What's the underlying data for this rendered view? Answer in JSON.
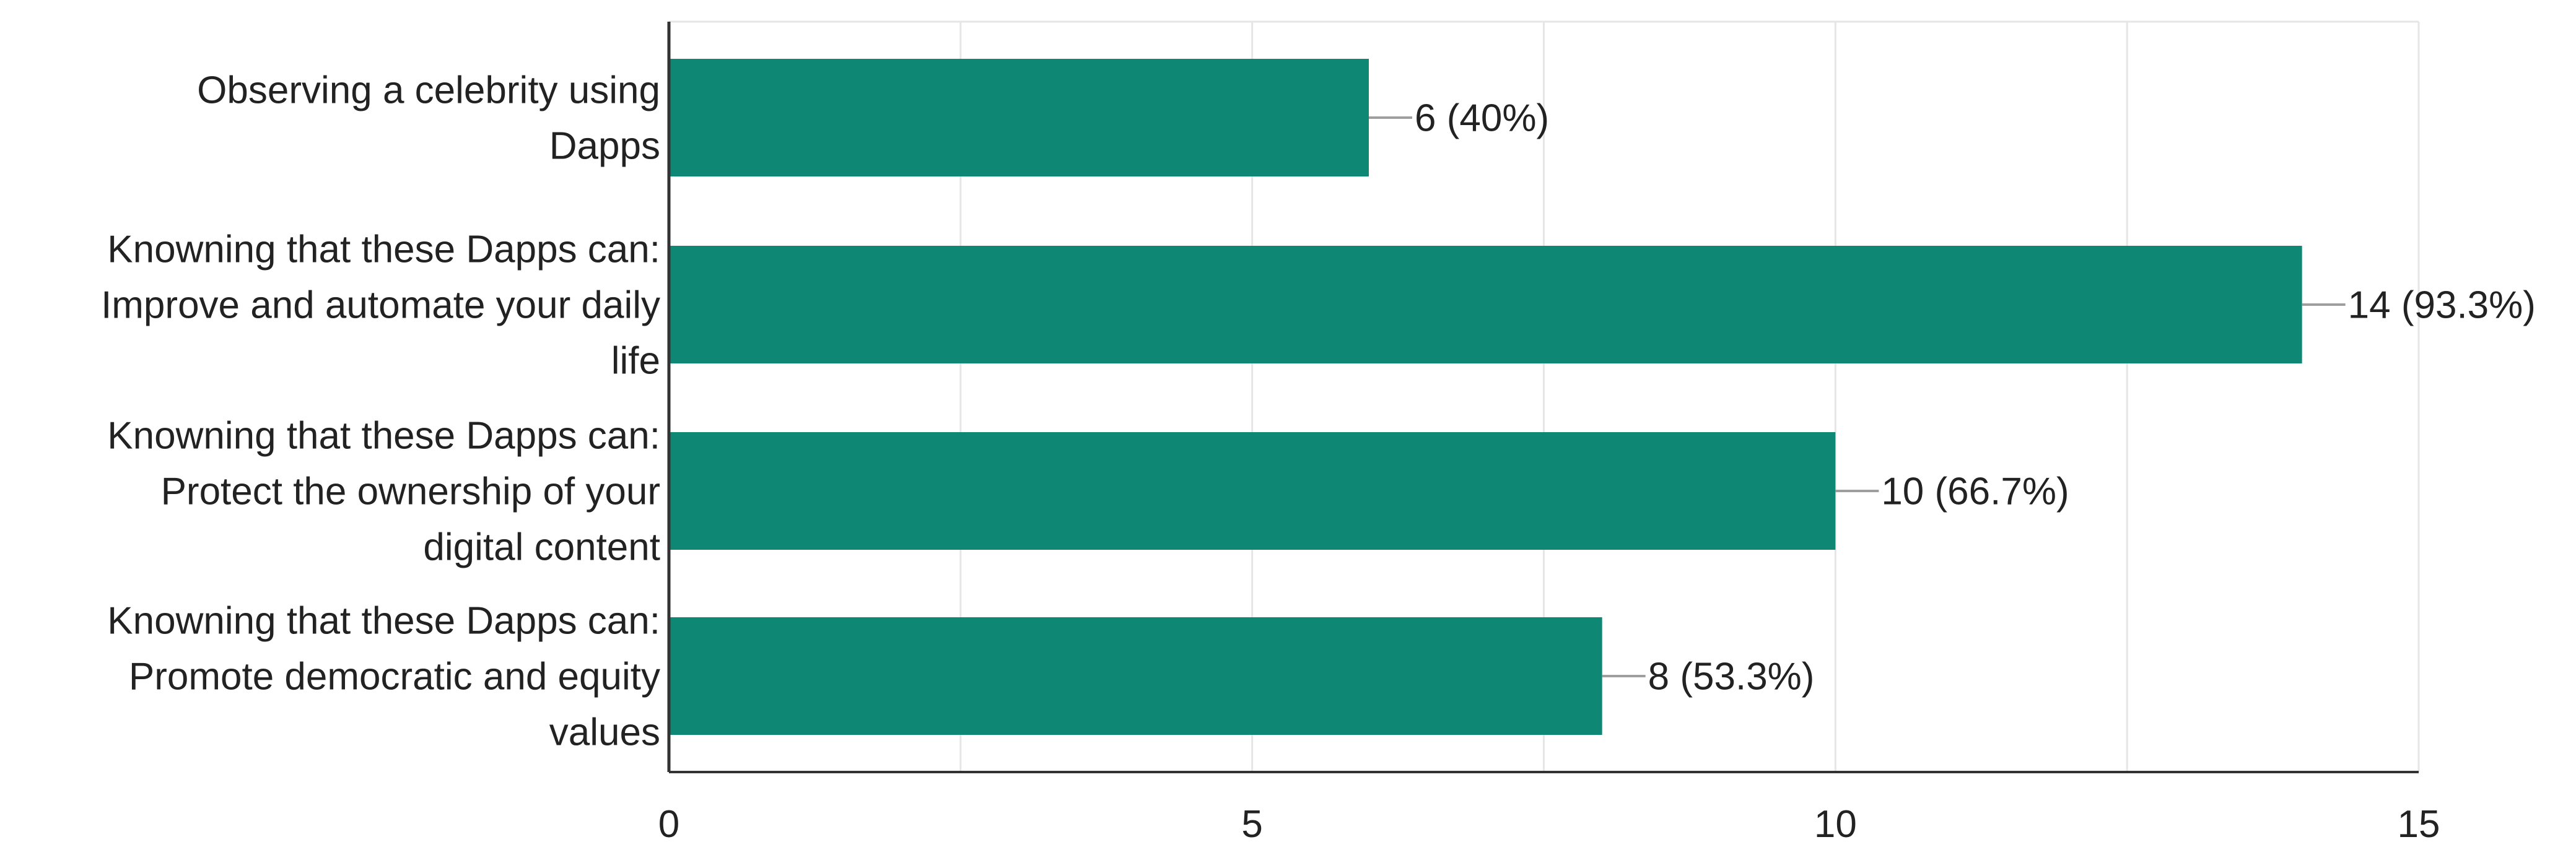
{
  "chart_data": {
    "type": "bar",
    "orientation": "horizontal",
    "title": "",
    "xlabel": "",
    "ylabel": "",
    "xlim": [
      0,
      15
    ],
    "x_ticks": [
      0,
      5,
      10,
      15
    ],
    "x_tick_labels": [
      "0",
      "5",
      "10",
      "15"
    ],
    "minor_gridlines_every": 2.5,
    "grid": true,
    "legend": "none",
    "categories": [
      [
        "Observing a celebrity using",
        "Dapps"
      ],
      [
        "Knowning that these Dapps can:",
        "Improve and automate your daily",
        "life"
      ],
      [
        "Knowning that these Dapps can:",
        "Protect the ownership of your",
        "digital content"
      ],
      [
        "Knowning that these Dapps can:",
        "Promote democratic and equity",
        "values"
      ]
    ],
    "values": [
      6,
      14,
      10,
      8
    ],
    "data_labels": [
      "6 (40%)",
      "14 (93.3%)",
      "10 (66.7%)",
      "8 (53.3%)"
    ],
    "colors": {
      "bar": "#0e8875",
      "text": "#222222",
      "axis": "#333333",
      "grid": "#e6e6e6",
      "leader": "#9e9e9e"
    }
  }
}
